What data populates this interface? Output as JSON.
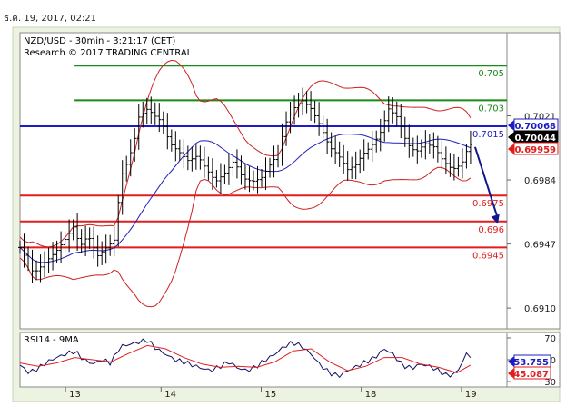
{
  "page": {
    "date_header": "ธ.ค. 19, 2017, 02:21"
  },
  "colors": {
    "resistance": "#1a8a1a",
    "pivot": "#1c1cc4",
    "support": "#e01e1e",
    "price": "#000000",
    "bollinger": "#cc2222",
    "ma": "#2222bb",
    "arrow": "#10188c",
    "rsi_line": "#101060",
    "rsi_ma": "#dd2222",
    "border": "#888888",
    "frame_bg": "#ecf3e0"
  },
  "chart_data": [
    {
      "type": "candlestick",
      "title": "NZD/USD - 30min - 3:21:17 (CET)",
      "subtitle": "Research © 2017 TRADING CENTRAL",
      "y_ticks": [
        "0.7021",
        "0.6984",
        "0.6947",
        "0.6910"
      ],
      "y_tick_values": [
        0.7021,
        0.6984,
        0.6947,
        0.691
      ],
      "ylim": [
        0.6898,
        0.7069
      ],
      "x_tick_labels": [
        "13",
        "14",
        "15",
        "18",
        "19"
      ],
      "x_tick_positions": [
        10,
        31,
        53,
        75,
        97
      ],
      "x_range": [
        0,
        107
      ],
      "levels": [
        {
          "label": "0.705",
          "value": 0.705,
          "kind": "resistance"
        },
        {
          "label": "0.703",
          "value": 0.703,
          "kind": "resistance"
        },
        {
          "label": "0.7015",
          "value": 0.7015,
          "kind": "pivot"
        },
        {
          "label": "0.6975",
          "value": 0.6975,
          "kind": "support"
        },
        {
          "label": "0.696",
          "value": 0.696,
          "kind": "support"
        },
        {
          "label": "0.6945",
          "value": 0.6945,
          "kind": "support"
        }
      ],
      "price_badges": [
        {
          "label": "0.70068",
          "value": 0.70068,
          "style": "blue"
        },
        {
          "label": "0.70044",
          "value": 0.70044,
          "style": "black"
        },
        {
          "label": "0.69959",
          "value": 0.69959,
          "style": "red"
        }
      ],
      "close_path": [
        [
          0,
          0.6945
        ],
        [
          3,
          0.693
        ],
        [
          5,
          0.6935
        ],
        [
          8,
          0.6943
        ],
        [
          10,
          0.695
        ],
        [
          12,
          0.6958
        ],
        [
          13,
          0.6945
        ],
        [
          15,
          0.6952
        ],
        [
          17,
          0.694
        ],
        [
          19,
          0.6945
        ],
        [
          21,
          0.695
        ],
        [
          22,
          0.6985
        ],
        [
          23,
          0.699
        ],
        [
          25,
          0.7005
        ],
        [
          26,
          0.702
        ],
        [
          28,
          0.7025
        ],
        [
          30,
          0.702
        ],
        [
          31,
          0.7018
        ],
        [
          33,
          0.7005
        ],
        [
          35,
          0.7
        ],
        [
          37,
          0.6995
        ],
        [
          39,
          0.6998
        ],
        [
          41,
          0.699
        ],
        [
          43,
          0.6983
        ],
        [
          45,
          0.6988
        ],
        [
          47,
          0.6995
        ],
        [
          49,
          0.6985
        ],
        [
          51,
          0.6983
        ],
        [
          53,
          0.6985
        ],
        [
          55,
          0.6993
        ],
        [
          57,
          0.7
        ],
        [
          58,
          0.7015
        ],
        [
          60,
          0.7025
        ],
        [
          62,
          0.703
        ],
        [
          64,
          0.7025
        ],
        [
          66,
          0.7015
        ],
        [
          68,
          0.7003
        ],
        [
          70,
          0.6998
        ],
        [
          72,
          0.699
        ],
        [
          74,
          0.6993
        ],
        [
          75,
          0.6998
        ],
        [
          77,
          0.7003
        ],
        [
          79,
          0.701
        ],
        [
          81,
          0.7025
        ],
        [
          83,
          0.702
        ],
        [
          85,
          0.7005
        ],
        [
          87,
          0.7
        ],
        [
          89,
          0.7005
        ],
        [
          91,
          0.7003
        ],
        [
          93,
          0.6995
        ],
        [
          95,
          0.699
        ],
        [
          97,
          0.6993
        ],
        [
          98,
          0.7
        ],
        [
          99,
          0.70044
        ]
      ],
      "forecast_arrow": {
        "from": [
          100,
          0.7003
        ],
        "to": [
          105,
          0.69585
        ]
      }
    },
    {
      "type": "line",
      "title": "RSI14 - 9MA",
      "y_ticks": [
        "70",
        "50",
        "30"
      ],
      "y_tick_values": [
        70,
        50,
        30
      ],
      "ylim": [
        25,
        75
      ],
      "x_range": [
        0,
        107
      ],
      "badges": [
        {
          "label": "53.755",
          "value": 53.755,
          "style": "blue"
        },
        {
          "label": "45.087",
          "value": 45.087,
          "style": "red"
        }
      ],
      "rsi_path": [
        [
          0,
          45
        ],
        [
          2,
          38
        ],
        [
          4,
          42
        ],
        [
          6,
          48
        ],
        [
          8,
          52
        ],
        [
          10,
          55
        ],
        [
          12,
          58
        ],
        [
          14,
          50
        ],
        [
          16,
          46
        ],
        [
          18,
          50
        ],
        [
          20,
          47
        ],
        [
          22,
          62
        ],
        [
          24,
          64
        ],
        [
          26,
          66
        ],
        [
          28,
          68
        ],
        [
          30,
          60
        ],
        [
          32,
          55
        ],
        [
          34,
          50
        ],
        [
          36,
          48
        ],
        [
          38,
          45
        ],
        [
          40,
          42
        ],
        [
          42,
          40
        ],
        [
          44,
          44
        ],
        [
          46,
          48
        ],
        [
          48,
          42
        ],
        [
          50,
          40
        ],
        [
          52,
          44
        ],
        [
          54,
          50
        ],
        [
          56,
          55
        ],
        [
          58,
          62
        ],
        [
          60,
          66
        ],
        [
          62,
          62
        ],
        [
          64,
          55
        ],
        [
          66,
          45
        ],
        [
          68,
          38
        ],
        [
          70,
          35
        ],
        [
          72,
          40
        ],
        [
          74,
          44
        ],
        [
          76,
          48
        ],
        [
          78,
          52
        ],
        [
          80,
          60
        ],
        [
          82,
          55
        ],
        [
          84,
          45
        ],
        [
          86,
          42
        ],
        [
          88,
          46
        ],
        [
          90,
          44
        ],
        [
          92,
          40
        ],
        [
          94,
          35
        ],
        [
          96,
          38
        ],
        [
          98,
          55
        ],
        [
          99,
          53.755
        ]
      ],
      "ma_path": [
        [
          0,
          47
        ],
        [
          4,
          44
        ],
        [
          8,
          47
        ],
        [
          12,
          52
        ],
        [
          16,
          50
        ],
        [
          20,
          48
        ],
        [
          24,
          56
        ],
        [
          28,
          63
        ],
        [
          32,
          60
        ],
        [
          36,
          52
        ],
        [
          40,
          46
        ],
        [
          44,
          43
        ],
        [
          48,
          44
        ],
        [
          52,
          43
        ],
        [
          56,
          48
        ],
        [
          60,
          58
        ],
        [
          64,
          60
        ],
        [
          68,
          48
        ],
        [
          72,
          40
        ],
        [
          76,
          44
        ],
        [
          80,
          52
        ],
        [
          84,
          52
        ],
        [
          88,
          46
        ],
        [
          92,
          43
        ],
        [
          96,
          38
        ],
        [
          99,
          45.087
        ]
      ]
    }
  ]
}
